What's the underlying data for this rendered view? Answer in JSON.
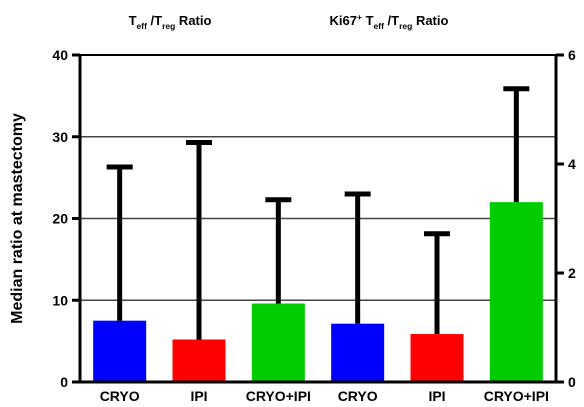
{
  "chart_data": {
    "type": "bar",
    "panels": [
      {
        "title_parts": [
          "T",
          "eff",
          " /T",
          "reg",
          " Ratio"
        ],
        "categories": [
          "CRYO",
          "IPI",
          "CRYO+IPI"
        ],
        "values": [
          7.5,
          5.2,
          9.6
        ],
        "error_upper": [
          26.3,
          29.3,
          22.3
        ],
        "colors": [
          "#0000ff",
          "#ff0000",
          "#00cc00"
        ],
        "axis": "left"
      },
      {
        "title_parts": [
          "Ki67",
          "+",
          " T",
          "eff",
          " /T",
          "reg",
          " Ratio"
        ],
        "categories": [
          "CRYO",
          "IPI",
          "CRYO+IPI"
        ],
        "values": [
          1.07,
          0.88,
          3.3
        ],
        "error_upper": [
          3.45,
          2.72,
          5.38
        ],
        "colors": [
          "#0000ff",
          "#ff0000",
          "#00cc00"
        ],
        "axis": "right"
      }
    ],
    "ylabel": "Median ratio at mastectomy",
    "left_axis": {
      "ylim": [
        0,
        40
      ],
      "ticks": [
        "0",
        "10",
        "20",
        "30",
        "40"
      ]
    },
    "right_axis": {
      "ylim": [
        0,
        6
      ],
      "ticks": [
        "0",
        "2",
        "4",
        "6"
      ]
    },
    "grid": true
  }
}
